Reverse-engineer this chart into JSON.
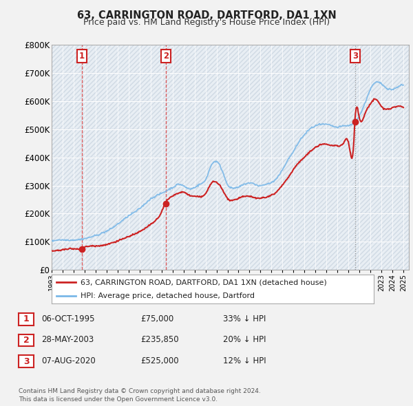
{
  "title": "63, CARRINGTON ROAD, DARTFORD, DA1 1XN",
  "subtitle": "Price paid vs. HM Land Registry's House Price Index (HPI)",
  "ylim": [
    0,
    800000
  ],
  "yticks": [
    0,
    100000,
    200000,
    300000,
    400000,
    500000,
    600000,
    700000,
    800000
  ],
  "ytick_labels": [
    "£0",
    "£100K",
    "£200K",
    "£300K",
    "£400K",
    "£500K",
    "£600K",
    "£700K",
    "£800K"
  ],
  "sale_year_floats": [
    1995.77,
    2003.41,
    2020.6
  ],
  "sale_prices": [
    75000,
    235850,
    525000
  ],
  "sale_labels": [
    "1",
    "2",
    "3"
  ],
  "hpi_color": "#7ab8e8",
  "sale_color": "#cc2222",
  "vline_color": "#dd4444",
  "legend_label_sale": "63, CARRINGTON ROAD, DARTFORD, DA1 1XN (detached house)",
  "legend_label_hpi": "HPI: Average price, detached house, Dartford",
  "table_rows": [
    {
      "num": "1",
      "date": "06-OCT-1995",
      "price": "£75,000",
      "hpi": "33% ↓ HPI"
    },
    {
      "num": "2",
      "date": "28-MAY-2003",
      "price": "£235,850",
      "hpi": "20% ↓ HPI"
    },
    {
      "num": "3",
      "date": "07-AUG-2020",
      "price": "£525,000",
      "hpi": "12% ↓ HPI"
    }
  ],
  "footnote": "Contains HM Land Registry data © Crown copyright and database right 2024.\nThis data is licensed under the Open Government Licence v3.0.",
  "background_color": "#f2f2f2",
  "plot_bg_color": "#e8eef4",
  "grid_color": "#ffffff",
  "hatch_color": "#d0dae4"
}
